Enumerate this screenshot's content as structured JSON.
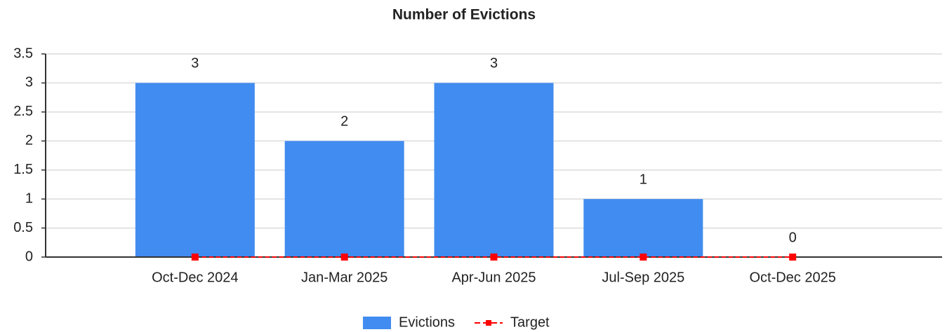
{
  "chart_data": {
    "type": "bar",
    "title": "Number of Evictions",
    "categories": [
      "Oct-Dec 2024",
      "Jan-Mar 2025",
      "Apr-Jun 2025",
      "Jul-Sep 2025",
      "Oct-Dec 2025"
    ],
    "series": [
      {
        "name": "Evictions",
        "color": "#418cf0",
        "type": "bar",
        "values": [
          3,
          2,
          3,
          1,
          0
        ]
      },
      {
        "name": "Target",
        "color": "#ff0000",
        "type": "line",
        "values": [
          0,
          0,
          0,
          0,
          0
        ]
      }
    ],
    "ylim": [
      0,
      3.5
    ],
    "yticks": [
      0,
      0.5,
      1,
      1.5,
      2,
      2.5,
      3,
      3.5
    ],
    "grid": true,
    "legend": "bottom"
  }
}
